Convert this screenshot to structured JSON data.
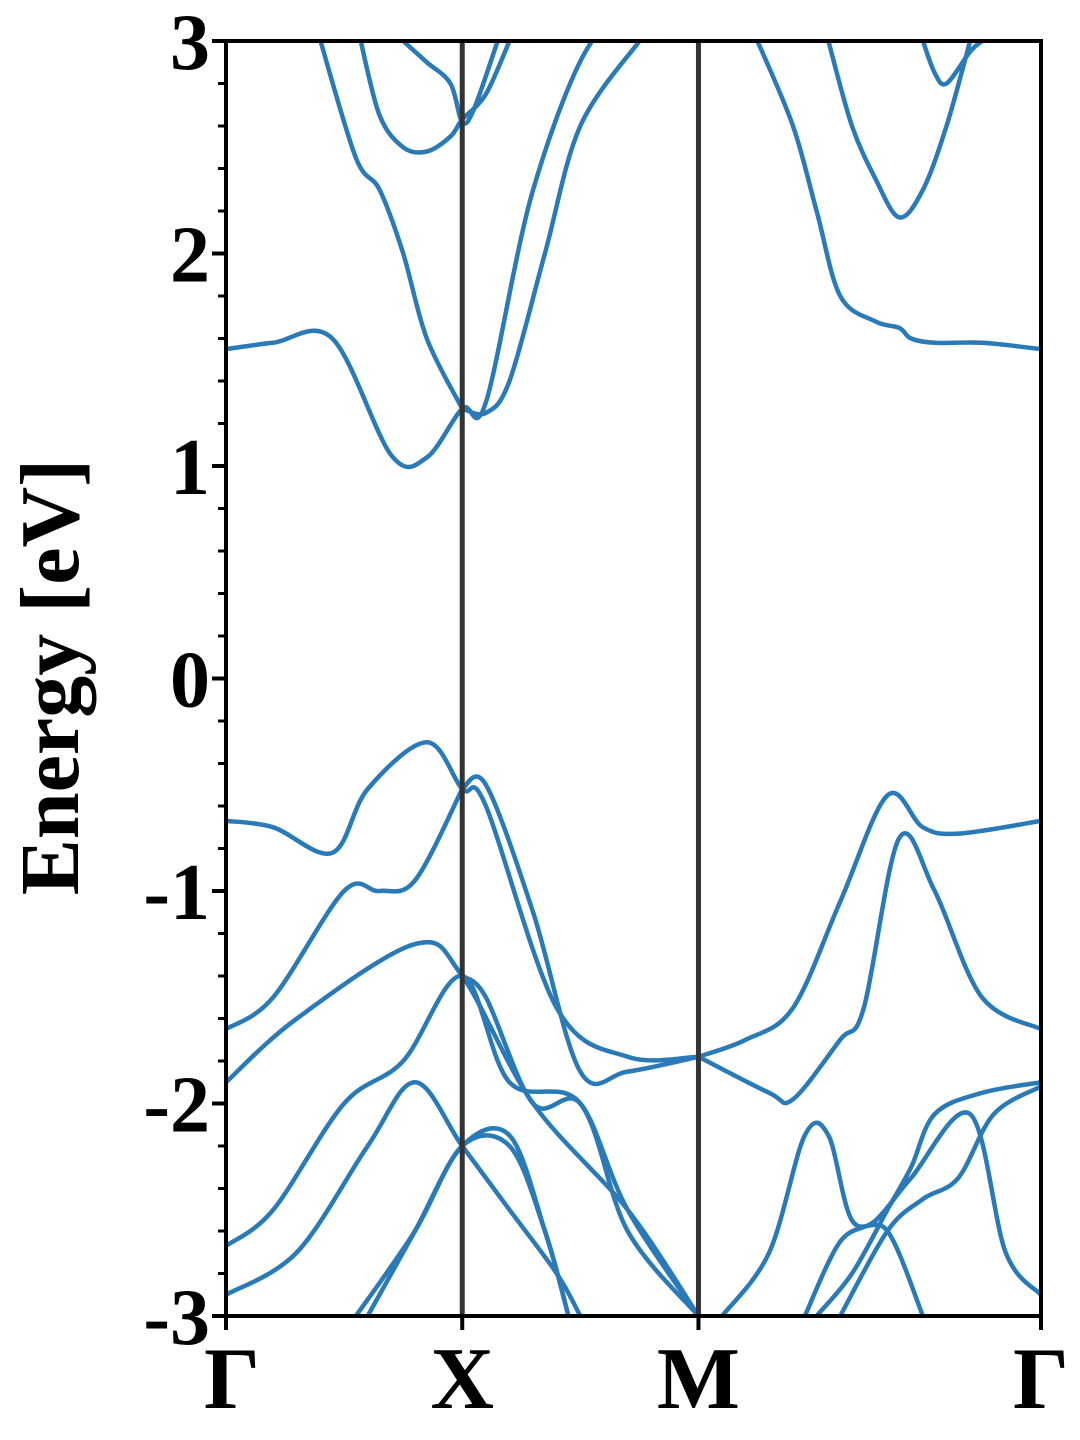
{
  "chart_data": {
    "type": "line",
    "ylabel": "Energy [eV]",
    "ylim": [
      -3,
      3
    ],
    "yticks": [
      "-3",
      "-2",
      "-1",
      "0",
      "1",
      "2",
      "3"
    ],
    "y_minor_step": 0.2,
    "xlim": [
      0,
      3.45
    ],
    "kpoints": [
      {
        "label": "Γ",
        "x": 0
      },
      {
        "label": "X",
        "x": 1
      },
      {
        "label": "M",
        "x": 2
      },
      {
        "label": "Γ",
        "x": 3.45
      }
    ],
    "grid": false,
    "colors": {
      "band": "#2a7ab8",
      "divider": "#333333",
      "axis": "#000000"
    },
    "series": [
      {
        "x": [
          0,
          0.2,
          0.45,
          0.6,
          0.85,
          1.0,
          1.1,
          1.4,
          1.7,
          2.0
        ],
        "values": [
          -0.67,
          -0.7,
          -0.82,
          -0.52,
          -0.3,
          -0.52,
          -0.6,
          -1.55,
          -1.78,
          -1.78
        ]
      },
      {
        "x": [
          1.0,
          1.1,
          1.3,
          1.5,
          1.7,
          2.0
        ],
        "values": [
          -0.52,
          -0.5,
          -1.1,
          -1.85,
          -1.85,
          -1.78
        ]
      },
      {
        "x": [
          0,
          0.2,
          0.5,
          0.65,
          0.8,
          1.0
        ],
        "values": [
          -1.65,
          -1.5,
          -1.0,
          -1.0,
          -0.95,
          -0.52
        ]
      },
      {
        "x": [
          2.0,
          2.2,
          2.4,
          2.6,
          2.8,
          2.95,
          3.1,
          3.45
        ],
        "values": [
          -1.78,
          -1.7,
          -1.55,
          -1.05,
          -0.55,
          -0.7,
          -0.73,
          -0.67
        ]
      },
      {
        "x": [
          2.0,
          2.3,
          2.4,
          2.6,
          2.7,
          2.85,
          3.0,
          3.2,
          3.45
        ],
        "values": [
          -1.78,
          -1.95,
          -1.98,
          -1.7,
          -1.55,
          -0.75,
          -1.0,
          -1.5,
          -1.65
        ]
      },
      {
        "x": [
          0,
          0.3,
          0.8,
          1.0,
          1.3,
          1.7,
          2.0
        ],
        "values": [
          -1.9,
          -1.6,
          -1.25,
          -1.4,
          -2.0,
          -2.5,
          -3.0
        ]
      },
      {
        "x": [
          0,
          0.2,
          0.5,
          0.75,
          1.0,
          1.2,
          1.5,
          1.7,
          2.0
        ],
        "values": [
          -2.67,
          -2.5,
          -2.0,
          -1.8,
          -1.4,
          -1.9,
          -2.0,
          -2.6,
          -3.0
        ]
      },
      {
        "x": [
          1.0,
          1.1,
          1.3,
          1.5,
          1.7,
          2.0
        ],
        "values": [
          -1.4,
          -1.5,
          -2.0,
          -2.0,
          -2.5,
          -3.0
        ]
      },
      {
        "x": [
          0,
          0.3,
          0.6,
          0.8,
          1.0,
          1.2,
          1.4,
          1.5
        ],
        "values": [
          -2.9,
          -2.7,
          -2.2,
          -1.9,
          -2.2,
          -2.5,
          -2.8,
          -3.0
        ]
      },
      {
        "x": [
          0.6,
          0.8,
          1.0,
          1.2,
          1.35,
          1.45
        ],
        "values": [
          -3.0,
          -2.6,
          -2.2,
          -2.15,
          -2.6,
          -3.0
        ]
      },
      {
        "x": [
          0.55,
          0.8,
          1.0,
          1.2,
          1.35,
          1.45
        ],
        "values": [
          -3.0,
          -2.6,
          -2.2,
          -2.2,
          -2.6,
          -3.0
        ]
      },
      {
        "x": [
          2.1,
          2.3,
          2.45,
          2.55,
          2.65,
          2.8,
          2.95
        ],
        "values": [
          -3.0,
          -2.7,
          -2.15,
          -2.15,
          -2.55,
          -2.6,
          -3.0
        ]
      },
      {
        "x": [
          2.45,
          2.6,
          2.75,
          2.9,
          3.15,
          3.3,
          3.45
        ],
        "values": [
          -3.0,
          -2.65,
          -2.55,
          -2.35,
          -2.05,
          -2.7,
          -2.9
        ]
      },
      {
        "x": [
          2.5,
          2.65,
          2.8,
          2.9,
          3.0,
          3.2,
          3.45
        ],
        "values": [
          -3.0,
          -2.8,
          -2.5,
          -2.3,
          -2.05,
          -1.95,
          -1.9
        ]
      },
      {
        "x": [
          2.6,
          2.8,
          2.95,
          3.1,
          3.25,
          3.45
        ],
        "values": [
          -3.0,
          -2.6,
          -2.45,
          -2.35,
          -2.05,
          -1.92
        ]
      },
      {
        "x": [
          0,
          0.2,
          0.45,
          0.7,
          0.85,
          1.0,
          1.1,
          1.3,
          1.55,
          1.75
        ],
        "values": [
          1.55,
          1.58,
          1.6,
          1.05,
          1.04,
          1.27,
          1.3,
          2.3,
          3.0,
          3.0
        ]
      },
      {
        "x": [
          1.0,
          1.1,
          1.2,
          1.35,
          1.5,
          1.75
        ],
        "values": [
          1.27,
          1.25,
          1.4,
          2.0,
          2.6,
          3.0
        ]
      },
      {
        "x": [
          0.4,
          0.55,
          0.65,
          0.75,
          0.85,
          1.0
        ],
        "values": [
          3.0,
          2.45,
          2.3,
          2.0,
          1.6,
          1.27
        ]
      },
      {
        "x": [
          0.57,
          0.65,
          0.75,
          0.85,
          0.95,
          1.0,
          1.1,
          1.2
        ],
        "values": [
          3.0,
          2.65,
          2.5,
          2.48,
          2.55,
          2.63,
          2.75,
          3.0
        ]
      },
      {
        "x": [
          0.75,
          0.85,
          0.95,
          1.0,
          1.05,
          1.15
        ],
        "values": [
          3.0,
          2.9,
          2.8,
          2.62,
          2.68,
          3.0
        ]
      },
      {
        "x": [
          2.25,
          2.4,
          2.5,
          2.6,
          2.75,
          2.85,
          2.9,
          3.0,
          3.2,
          3.45
        ],
        "values": [
          3.0,
          2.6,
          2.2,
          1.8,
          1.68,
          1.65,
          1.6,
          1.58,
          1.58,
          1.55
        ]
      },
      {
        "x": [
          2.55,
          2.65,
          2.75,
          2.85,
          2.95,
          3.05,
          3.15
        ],
        "values": [
          3.0,
          2.6,
          2.35,
          2.17,
          2.3,
          2.6,
          3.0
        ]
      },
      {
        "x": [
          2.95,
          3.0,
          3.05,
          3.15,
          3.2
        ],
        "values": [
          3.0,
          2.85,
          2.8,
          2.95,
          3.0
        ]
      }
    ]
  }
}
